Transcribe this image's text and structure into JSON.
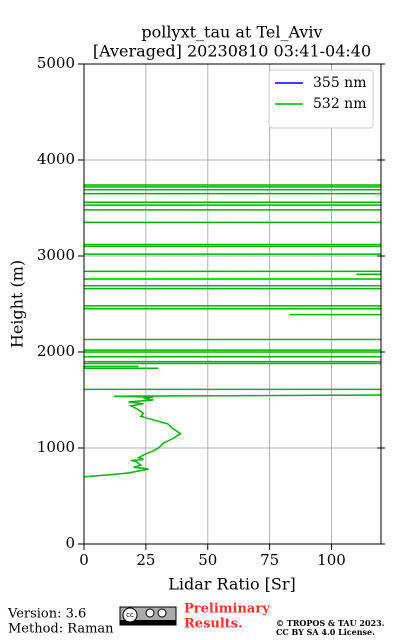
{
  "chart_data": {
    "type": "line",
    "title": "pollyxt_tau at Tel_Aviv",
    "subtitle": "[Averaged] 20230810 03:41-04:40",
    "x_label": "Lidar Ratio [Sr]",
    "y_label": "Height (m)",
    "xlim": [
      0,
      120
    ],
    "xticks": [
      0,
      25,
      50,
      75,
      100
    ],
    "ylim": [
      0,
      5000
    ],
    "yticks": [
      0,
      1000,
      2000,
      3000,
      4000,
      5000
    ],
    "grid": true,
    "legend": "upper right",
    "series": [
      {
        "name": "355 nm",
        "color": "#0000ff",
        "x": [],
        "values": []
      },
      {
        "name": "532 nm",
        "color": "#00b400",
        "x": [
          0,
          10,
          18,
          22,
          26,
          24,
          20,
          23,
          21,
          19,
          24,
          22,
          25,
          28,
          30,
          32,
          36,
          39,
          36,
          34,
          27,
          23,
          24,
          22,
          19,
          24,
          18,
          28,
          24,
          28,
          12,
          200,
          null,
          -50,
          200,
          null,
          0,
          30,
          null,
          0,
          22,
          null,
          -50,
          200,
          null,
          -50,
          200,
          null,
          -50,
          200,
          null,
          -50,
          200,
          null,
          -50,
          200,
          null,
          -50,
          200,
          null,
          83,
          200,
          null,
          -50,
          200,
          null,
          -50,
          200,
          null,
          -50,
          200,
          null,
          -50,
          200,
          null,
          -50,
          200,
          null,
          110,
          200,
          null,
          -50,
          200,
          null,
          -50,
          200,
          null,
          -50,
          200,
          null,
          -50,
          200,
          null,
          -50,
          200,
          null,
          -50,
          200,
          null,
          -50,
          200,
          null,
          -50,
          200,
          null,
          -50,
          200,
          null,
          -50,
          200,
          null,
          -50,
          200,
          null,
          -50,
          200
        ],
        "values": [
          700,
          720,
          740,
          760,
          780,
          790,
          800,
          820,
          860,
          870,
          880,
          900,
          940,
          970,
          1000,
          1050,
          1100,
          1150,
          1200,
          1250,
          1300,
          1330,
          1360,
          1400,
          1440,
          1460,
          1480,
          1500,
          1520,
          1530,
          1540,
          1560,
          null,
          1610,
          1610,
          null,
          1830,
          1830,
          null,
          1850,
          1850,
          null,
          1880,
          1880,
          null,
          1900,
          1900,
          null,
          1950,
          1950,
          null,
          2000,
          2000,
          null,
          2020,
          2020,
          null,
          2130,
          2130,
          null,
          2390,
          2390,
          null,
          2450,
          2450,
          null,
          2480,
          2480,
          null,
          2660,
          2660,
          null,
          2690,
          2690,
          null,
          2760,
          2760,
          null,
          2810,
          2810,
          null,
          2840,
          2840,
          null,
          3020,
          3020,
          null,
          3100,
          3100,
          null,
          3120,
          3120,
          null,
          3350,
          3350,
          null,
          3480,
          3480,
          null,
          3530,
          3530,
          null,
          3560,
          3560,
          null,
          3650,
          3650,
          null,
          3690,
          3690,
          null,
          3720,
          3720,
          null,
          3740,
          3740
        ]
      }
    ],
    "footer": {
      "version": "Version: 3.6",
      "method": "Method: Raman",
      "preliminary": "Preliminary",
      "results": "Results.",
      "copyright": "© TROPOS & TAU 2023.",
      "license": "CC BY SA 4.0 License."
    }
  }
}
